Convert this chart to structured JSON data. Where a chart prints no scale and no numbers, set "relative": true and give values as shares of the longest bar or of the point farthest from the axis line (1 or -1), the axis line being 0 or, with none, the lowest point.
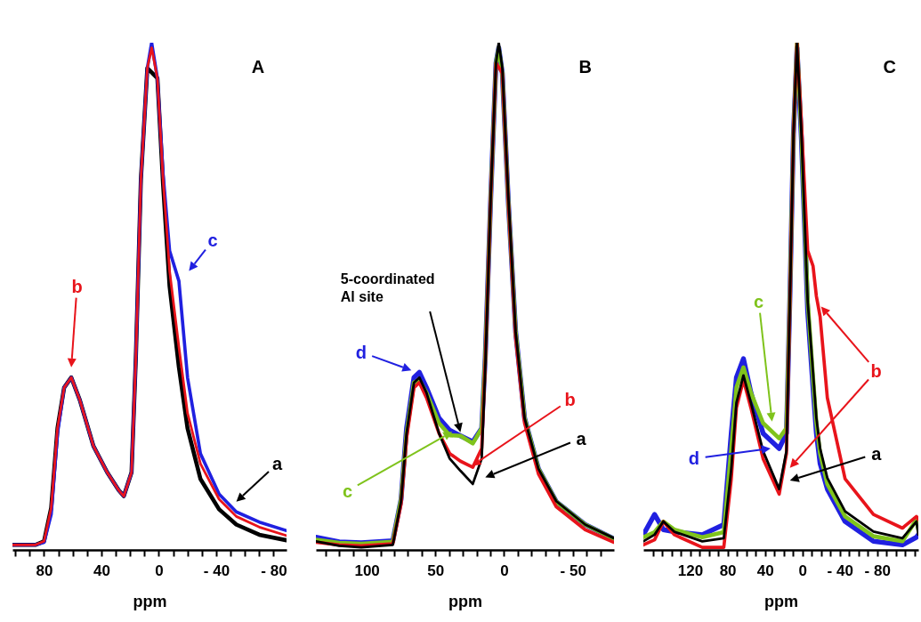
{
  "chart_data": [
    {
      "type": "line",
      "title": "A",
      "xlabel": "ppm",
      "relative": true,
      "xlim": [
        102,
        -89
      ],
      "xticks": [
        {
          "value": 100,
          "label": null
        },
        {
          "value": 90,
          "label": null
        },
        80,
        {
          "value": 70,
          "label": null
        },
        {
          "value": 60,
          "label": null
        },
        {
          "value": 50,
          "label": null
        },
        40,
        {
          "value": 30,
          "label": null
        },
        {
          "value": 20,
          "label": null
        },
        {
          "value": 10,
          "label": null
        },
        0,
        {
          "value": -10,
          "label": null
        },
        {
          "value": -20,
          "label": null
        },
        {
          "value": -30,
          "label": null
        },
        {
          "value": -40,
          "label": "- 40"
        },
        {
          "value": -50,
          "label": null
        },
        {
          "value": -60,
          "label": null
        },
        {
          "value": -70,
          "label": null
        },
        {
          "value": -80,
          "label": "- 80"
        }
      ],
      "x": [
        102,
        86,
        80,
        75,
        70.6,
        66,
        61,
        55,
        45.6,
        36,
        28,
        24.4,
        19,
        16,
        12.5,
        8,
        5,
        1,
        -3,
        -7.5,
        -14,
        -20,
        -29,
        -42,
        -54,
        -70,
        -89
      ],
      "series": [
        {
          "name": "a",
          "color": "#000000",
          "values": [
            0.01,
            0.01,
            0.017,
            0.083,
            0.24,
            0.32,
            0.34,
            0.295,
            0.205,
            0.153,
            0.118,
            0.106,
            0.153,
            0.38,
            0.73,
            0.95,
            null,
            0.93,
            0.72,
            0.52,
            0.36,
            0.24,
            0.14,
            0.08,
            0.05,
            0.03,
            0.019
          ]
        },
        {
          "name": "c",
          "color": "#2020e0",
          "values": [
            0.01,
            0.01,
            0.015,
            0.07,
            0.23,
            0.32,
            0.34,
            0.295,
            0.205,
            0.153,
            0.118,
            0.106,
            0.153,
            0.38,
            0.73,
            0.95,
            1.0,
            0.93,
            0.74,
            0.59,
            0.53,
            0.34,
            0.19,
            0.11,
            0.075,
            0.055,
            0.038
          ]
        },
        {
          "name": "b",
          "color": "#e8141b",
          "values": [
            0.01,
            0.01,
            0.017,
            0.083,
            0.24,
            0.32,
            0.34,
            0.295,
            0.205,
            0.153,
            0.118,
            0.106,
            0.153,
            0.38,
            0.73,
            0.95,
            0.99,
            0.93,
            0.73,
            0.55,
            0.4,
            0.27,
            0.17,
            0.1,
            0.066,
            0.045,
            0.028
          ]
        }
      ]
    },
    {
      "type": "line",
      "title": "B",
      "xlabel": "ppm",
      "relative": true,
      "xlim": [
        137,
        -80
      ],
      "xticks": [
        {
          "value": 130,
          "label": null
        },
        {
          "value": 120,
          "label": null
        },
        {
          "value": 110,
          "label": null
        },
        100,
        {
          "value": 90,
          "label": null
        },
        {
          "value": 80,
          "label": null
        },
        {
          "value": 70,
          "label": null
        },
        {
          "value": 60,
          "label": null
        },
        50,
        {
          "value": 40,
          "label": null
        },
        {
          "value": 30,
          "label": null
        },
        {
          "value": 20,
          "label": null
        },
        {
          "value": 10,
          "label": null
        },
        0,
        {
          "value": -10,
          "label": null
        },
        {
          "value": -20,
          "label": null
        },
        {
          "value": -30,
          "label": null
        },
        {
          "value": -40,
          "label": null
        },
        {
          "value": -50,
          "label": "- 50"
        },
        {
          "value": -60,
          "label": null
        },
        {
          "value": -70,
          "label": null
        }
      ],
      "x": [
        137,
        120,
        104,
        81,
        75,
        71,
        65.6,
        61.7,
        56.5,
        47.4,
        39.6,
        31.8,
        22.8,
        16.3,
        13.7,
        9.8,
        5.9,
        3.9,
        1.3,
        -3.2,
        -8.4,
        -14.9,
        -25,
        -38,
        -59,
        -80
      ],
      "series": [
        {
          "name": "d",
          "color": "#2020e0",
          "values": [
            0.025,
            0.016,
            0.014,
            0.018,
            0.1,
            0.24,
            0.34,
            0.35,
            0.32,
            0.26,
            0.236,
            0.225,
            0.213,
            0.24,
            0.38,
            0.69,
            0.96,
            0.99,
            0.94,
            0.68,
            0.43,
            0.26,
            0.16,
            0.095,
            0.05,
            0.022
          ]
        },
        {
          "name": "c",
          "color": "#7fc31c",
          "values": [
            0.02,
            0.014,
            0.012,
            0.016,
            0.1,
            0.23,
            0.33,
            0.335,
            0.31,
            0.25,
            0.226,
            0.225,
            0.21,
            0.24,
            0.38,
            0.69,
            0.96,
            0.99,
            0.94,
            0.68,
            0.43,
            0.26,
            0.16,
            0.095,
            0.05,
            0.022
          ]
        },
        {
          "name": "b",
          "color": "#e8141b",
          "values": [
            0.015,
            0.01,
            0.008,
            0.012,
            0.09,
            0.22,
            0.32,
            0.33,
            0.3,
            0.23,
            0.19,
            0.175,
            0.163,
            0.2,
            0.37,
            0.69,
            0.96,
            null,
            0.94,
            0.68,
            0.42,
            0.25,
            0.15,
            0.085,
            0.04,
            0.015
          ]
        },
        {
          "name": "a",
          "color": "#000000",
          "values": [
            0.017,
            0.008,
            0.005,
            0.01,
            0.096,
            0.23,
            0.33,
            0.34,
            0.31,
            0.23,
            0.18,
            0.156,
            0.13,
            0.18,
            0.36,
            0.69,
            0.96,
            1.0,
            0.95,
            0.69,
            0.43,
            0.26,
            0.16,
            0.096,
            0.05,
            0.023
          ]
        }
      ],
      "annotations": [
        "5-coordinated Al site"
      ]
    },
    {
      "type": "line",
      "title": "C",
      "xlabel": "ppm",
      "relative": true,
      "xlim": [
        170,
        -124
      ],
      "xticks": [
        {
          "value": 160,
          "label": null
        },
        {
          "value": 150,
          "label": null
        },
        {
          "value": 140,
          "label": null
        },
        {
          "value": 130,
          "label": null
        },
        120,
        {
          "value": 110,
          "label": null
        },
        {
          "value": 100,
          "label": null
        },
        {
          "value": 90,
          "label": null
        },
        80,
        {
          "value": 70,
          "label": null
        },
        {
          "value": 60,
          "label": null
        },
        {
          "value": 50,
          "label": null
        },
        40,
        {
          "value": 30,
          "label": null
        },
        {
          "value": 20,
          "label": null
        },
        {
          "value": 10,
          "label": null
        },
        0,
        {
          "value": -10,
          "label": null
        },
        {
          "value": -20,
          "label": null
        },
        {
          "value": -30,
          "label": null
        },
        {
          "value": -40,
          "label": "- 40"
        },
        {
          "value": -50,
          "label": null
        },
        {
          "value": -60,
          "label": null
        },
        {
          "value": -70,
          "label": null
        },
        {
          "value": -80,
          "label": "- 80"
        },
        {
          "value": -90,
          "label": null
        },
        {
          "value": -100,
          "label": null
        },
        {
          "value": -110,
          "label": null
        },
        {
          "value": -120,
          "label": null
        }
      ],
      "x": [
        170,
        158,
        148.6,
        137,
        107,
        84,
        76,
        70.5,
        63,
        55,
        42,
        24.8,
        17,
        13.3,
        9.5,
        5.7,
        1,
        -5.7,
        -11.4,
        -15,
        -19,
        -26.7,
        -45.7,
        -76,
        -107,
        -122,
        -124
      ],
      "series": [
        {
          "name": "d",
          "color": "#2020e0",
          "values": [
            0.03,
            0.07,
            0.04,
            0.036,
            0.03,
            0.05,
            0.23,
            0.34,
            0.377,
            0.31,
            0.23,
            0.2,
            0.23,
            0.5,
            0.82,
            0.99,
            0.81,
            0.47,
            0.32,
            0.23,
            0.17,
            0.12,
            0.056,
            0.017,
            0.01,
            0.025,
            0.03
          ]
        },
        {
          "name": "c",
          "color": "#7fc31c",
          "values": [
            0.025,
            0.035,
            0.056,
            0.04,
            0.025,
            0.035,
            0.2,
            0.32,
            0.36,
            0.31,
            0.25,
            0.22,
            0.24,
            0.5,
            0.82,
            1.0,
            0.82,
            0.49,
            0.34,
            0.25,
            0.19,
            0.13,
            0.066,
            0.027,
            0.017,
            0.06,
            0.04
          ]
        },
        {
          "name": "b",
          "color": "#e8141b",
          "values": [
            0.01,
            0.02,
            0.056,
            0.03,
            0.005,
            0.005,
            0.14,
            0.28,
            0.335,
            0.28,
            0.18,
            0.11,
            0.19,
            0.49,
            0.82,
            1.0,
            0.84,
            0.59,
            0.56,
            0.5,
            0.46,
            0.3,
            0.14,
            0.07,
            0.043,
            0.066,
            0.06
          ]
        },
        {
          "name": "a",
          "color": "#000000",
          "values": [
            0.017,
            0.03,
            0.056,
            0.036,
            0.017,
            0.023,
            0.16,
            0.29,
            0.344,
            0.29,
            0.195,
            0.12,
            0.195,
            0.49,
            0.82,
            1.0,
            0.82,
            0.49,
            0.35,
            0.26,
            0.2,
            0.142,
            0.076,
            0.036,
            0.023,
            0.056,
            0.03
          ]
        }
      ]
    }
  ]
}
